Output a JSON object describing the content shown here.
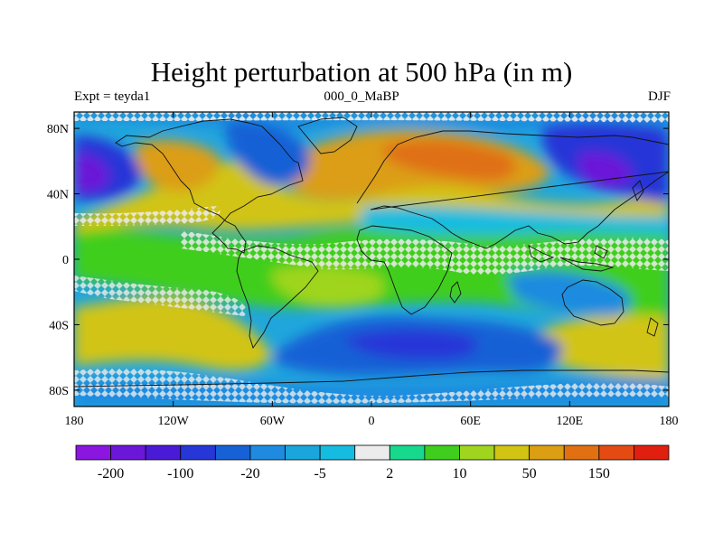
{
  "title": "Height perturbation at 500 hPa (in m)",
  "subtitle_left": "Expt = teyda1",
  "subtitle_center": "000_0_MaBP",
  "subtitle_right": "DJF",
  "lat_ticks": [
    {
      "value": 80,
      "label": "80N"
    },
    {
      "value": 40,
      "label": "40N"
    },
    {
      "value": 0,
      "label": "0"
    },
    {
      "value": -40,
      "label": "40S"
    },
    {
      "value": -80,
      "label": "80S"
    }
  ],
  "lon_ticks": [
    {
      "value": -180,
      "label": "180"
    },
    {
      "value": -120,
      "label": "120W"
    },
    {
      "value": -60,
      "label": "60W"
    },
    {
      "value": 0,
      "label": "0"
    },
    {
      "value": 60,
      "label": "60E"
    },
    {
      "value": 120,
      "label": "120E"
    },
    {
      "value": 180,
      "label": "180"
    }
  ],
  "map_extent": {
    "lon_min": -180,
    "lon_max": 180,
    "lat_min": -90,
    "lat_max": 90
  },
  "colorbar": {
    "colors": [
      "#8a16e0",
      "#6c17d8",
      "#4a1bd6",
      "#2636d7",
      "#1661d6",
      "#1f8be0",
      "#1aa6dc",
      "#16bce0",
      "#ececec",
      "#17d98e",
      "#3fce1d",
      "#9fd51e",
      "#d1c412",
      "#dc9e13",
      "#e07012",
      "#e44b12",
      "#e01f10"
    ],
    "labels": [
      {
        "boundary": 1,
        "text": "-200"
      },
      {
        "boundary": 3,
        "text": "-100"
      },
      {
        "boundary": 5,
        "text": "-20"
      },
      {
        "boundary": 7,
        "text": "-5"
      },
      {
        "boundary": 9,
        "text": "2"
      },
      {
        "boundary": 11,
        "text": "10"
      },
      {
        "boundary": 13,
        "text": "50"
      },
      {
        "boundary": 15,
        "text": "150"
      }
    ]
  },
  "colors": {
    "map_background": "#20a6dc",
    "coastline": "#111111"
  }
}
